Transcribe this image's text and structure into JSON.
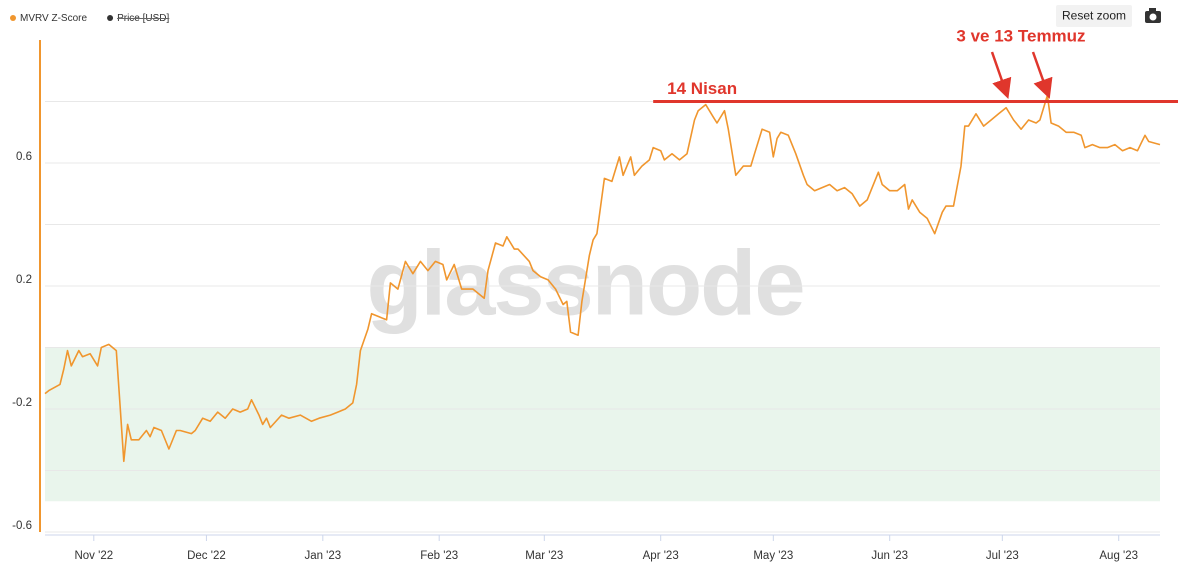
{
  "chart_data": {
    "type": "line",
    "watermark": "glassnode",
    "reset_zoom": "Reset zoom",
    "series": [
      {
        "name": "MVRV Z-Score",
        "color": "#f0962e",
        "x": [
          0,
          1,
          4,
          5,
          6,
          7,
          9,
          10,
          12,
          14,
          15,
          17,
          19,
          20,
          21,
          22,
          23,
          25,
          27,
          28,
          29,
          31,
          33,
          35,
          36,
          39,
          40,
          42,
          44,
          46,
          48,
          50,
          52,
          54,
          55,
          57,
          58,
          59,
          60,
          63,
          65,
          68,
          71,
          73,
          76,
          78,
          80,
          82,
          83,
          84,
          86,
          87,
          89,
          91,
          92,
          94,
          96,
          98,
          100,
          102,
          104,
          106,
          107,
          109,
          111,
          113,
          114,
          117,
          118,
          120,
          122,
          123,
          125,
          126,
          129,
          130,
          132,
          134,
          136,
          138,
          139,
          140,
          142,
          143,
          145,
          146,
          147,
          149,
          151,
          153,
          154,
          156,
          157,
          159,
          161,
          162,
          164,
          165,
          167,
          169,
          171,
          173,
          174,
          176,
          178,
          179,
          181,
          182,
          184,
          186,
          188,
          189,
          191,
          193,
          194,
          195,
          196,
          198,
          200,
          202,
          203,
          205,
          207,
          209,
          211,
          213,
          215,
          217,
          219,
          220,
          222,
          223,
          225,
          227,
          229,
          230,
          231,
          233,
          235,
          237,
          239,
          240,
          242,
          244,
          245,
          246,
          248,
          250,
          252,
          254,
          256,
          258,
          260,
          262,
          264,
          265,
          267,
          268,
          270,
          272,
          274,
          276,
          277,
          279,
          281,
          283,
          285,
          287,
          289,
          291,
          293,
          294,
          297
        ],
        "values": [
          -0.15,
          -0.14,
          -0.12,
          -0.07,
          -0.01,
          -0.06,
          -0.01,
          -0.03,
          -0.02,
          -0.06,
          0.0,
          0.01,
          -0.01,
          -0.19,
          -0.37,
          -0.25,
          -0.3,
          -0.3,
          -0.27,
          -0.29,
          -0.26,
          -0.27,
          -0.33,
          -0.27,
          -0.27,
          -0.28,
          -0.27,
          -0.23,
          -0.24,
          -0.21,
          -0.23,
          -0.2,
          -0.21,
          -0.2,
          -0.17,
          -0.22,
          -0.25,
          -0.23,
          -0.26,
          -0.22,
          -0.23,
          -0.22,
          -0.24,
          -0.23,
          -0.22,
          -0.21,
          -0.2,
          -0.18,
          -0.12,
          -0.01,
          0.06,
          0.11,
          0.1,
          0.09,
          0.21,
          0.19,
          0.28,
          0.24,
          0.28,
          0.25,
          0.28,
          0.27,
          0.22,
          0.27,
          0.19,
          0.19,
          0.19,
          0.16,
          0.25,
          0.34,
          0.33,
          0.36,
          0.32,
          0.32,
          0.28,
          0.25,
          0.23,
          0.22,
          0.19,
          0.14,
          0.15,
          0.05,
          0.04,
          0.15,
          0.3,
          0.35,
          0.37,
          0.55,
          0.54,
          0.62,
          0.56,
          0.62,
          0.56,
          0.59,
          0.61,
          0.65,
          0.64,
          0.61,
          0.63,
          0.61,
          0.63,
          0.74,
          0.77,
          0.79,
          0.75,
          0.73,
          0.77,
          0.71,
          0.56,
          0.59,
          0.59,
          0.63,
          0.71,
          0.7,
          0.62,
          0.68,
          0.7,
          0.69,
          0.63,
          0.56,
          0.53,
          0.51,
          0.52,
          0.53,
          0.51,
          0.52,
          0.5,
          0.46,
          0.48,
          0.51,
          0.57,
          0.53,
          0.51,
          0.51,
          0.53,
          0.45,
          0.48,
          0.44,
          0.42,
          0.37,
          0.44,
          0.46,
          0.46,
          0.59,
          0.72,
          0.72,
          0.76,
          0.72,
          0.74,
          0.76,
          0.78,
          0.74,
          0.71,
          0.74,
          0.73,
          0.74,
          0.82,
          0.73,
          0.72,
          0.7,
          0.7,
          0.69,
          0.65,
          0.66,
          0.65,
          0.65,
          0.66,
          0.64,
          0.65,
          0.64,
          0.69,
          0.67,
          0.66
        ]
      }
    ],
    "legend_hidden": [
      {
        "name": "Price [USD]",
        "color": "#333333"
      }
    ],
    "xlim": [
      0,
      297
    ],
    "xticks": [
      {
        "value": 13,
        "label": "Nov '22"
      },
      {
        "value": 43,
        "label": "Dec '22"
      },
      {
        "value": 74,
        "label": "Jan '23"
      },
      {
        "value": 105,
        "label": "Feb '23"
      },
      {
        "value": 133,
        "label": "Mar '23"
      },
      {
        "value": 164,
        "label": "Apr '23"
      },
      {
        "value": 194,
        "label": "May '23"
      },
      {
        "value": 225,
        "label": "Jun '23"
      },
      {
        "value": 255,
        "label": "Jul '23"
      },
      {
        "value": 286,
        "label": "Aug '23"
      }
    ],
    "ylim": [
      -0.6,
      1.0
    ],
    "yticks": [
      -0.6,
      -0.2,
      0.2,
      0.6
    ],
    "minor_yticks": [
      -0.4,
      0,
      0.4,
      0.8
    ],
    "grid": true,
    "band": {
      "ylim": [
        -0.5,
        0
      ],
      "color": "#e9f5ec"
    },
    "reference_line": {
      "label": "14 Nisan",
      "value": 0.8,
      "x_start": 162,
      "color": "#e0362c"
    },
    "arrow_annotation": {
      "label": "3 ve 13 Temmuz",
      "x": [
        256,
        267
      ],
      "color": "#e0362c"
    }
  }
}
